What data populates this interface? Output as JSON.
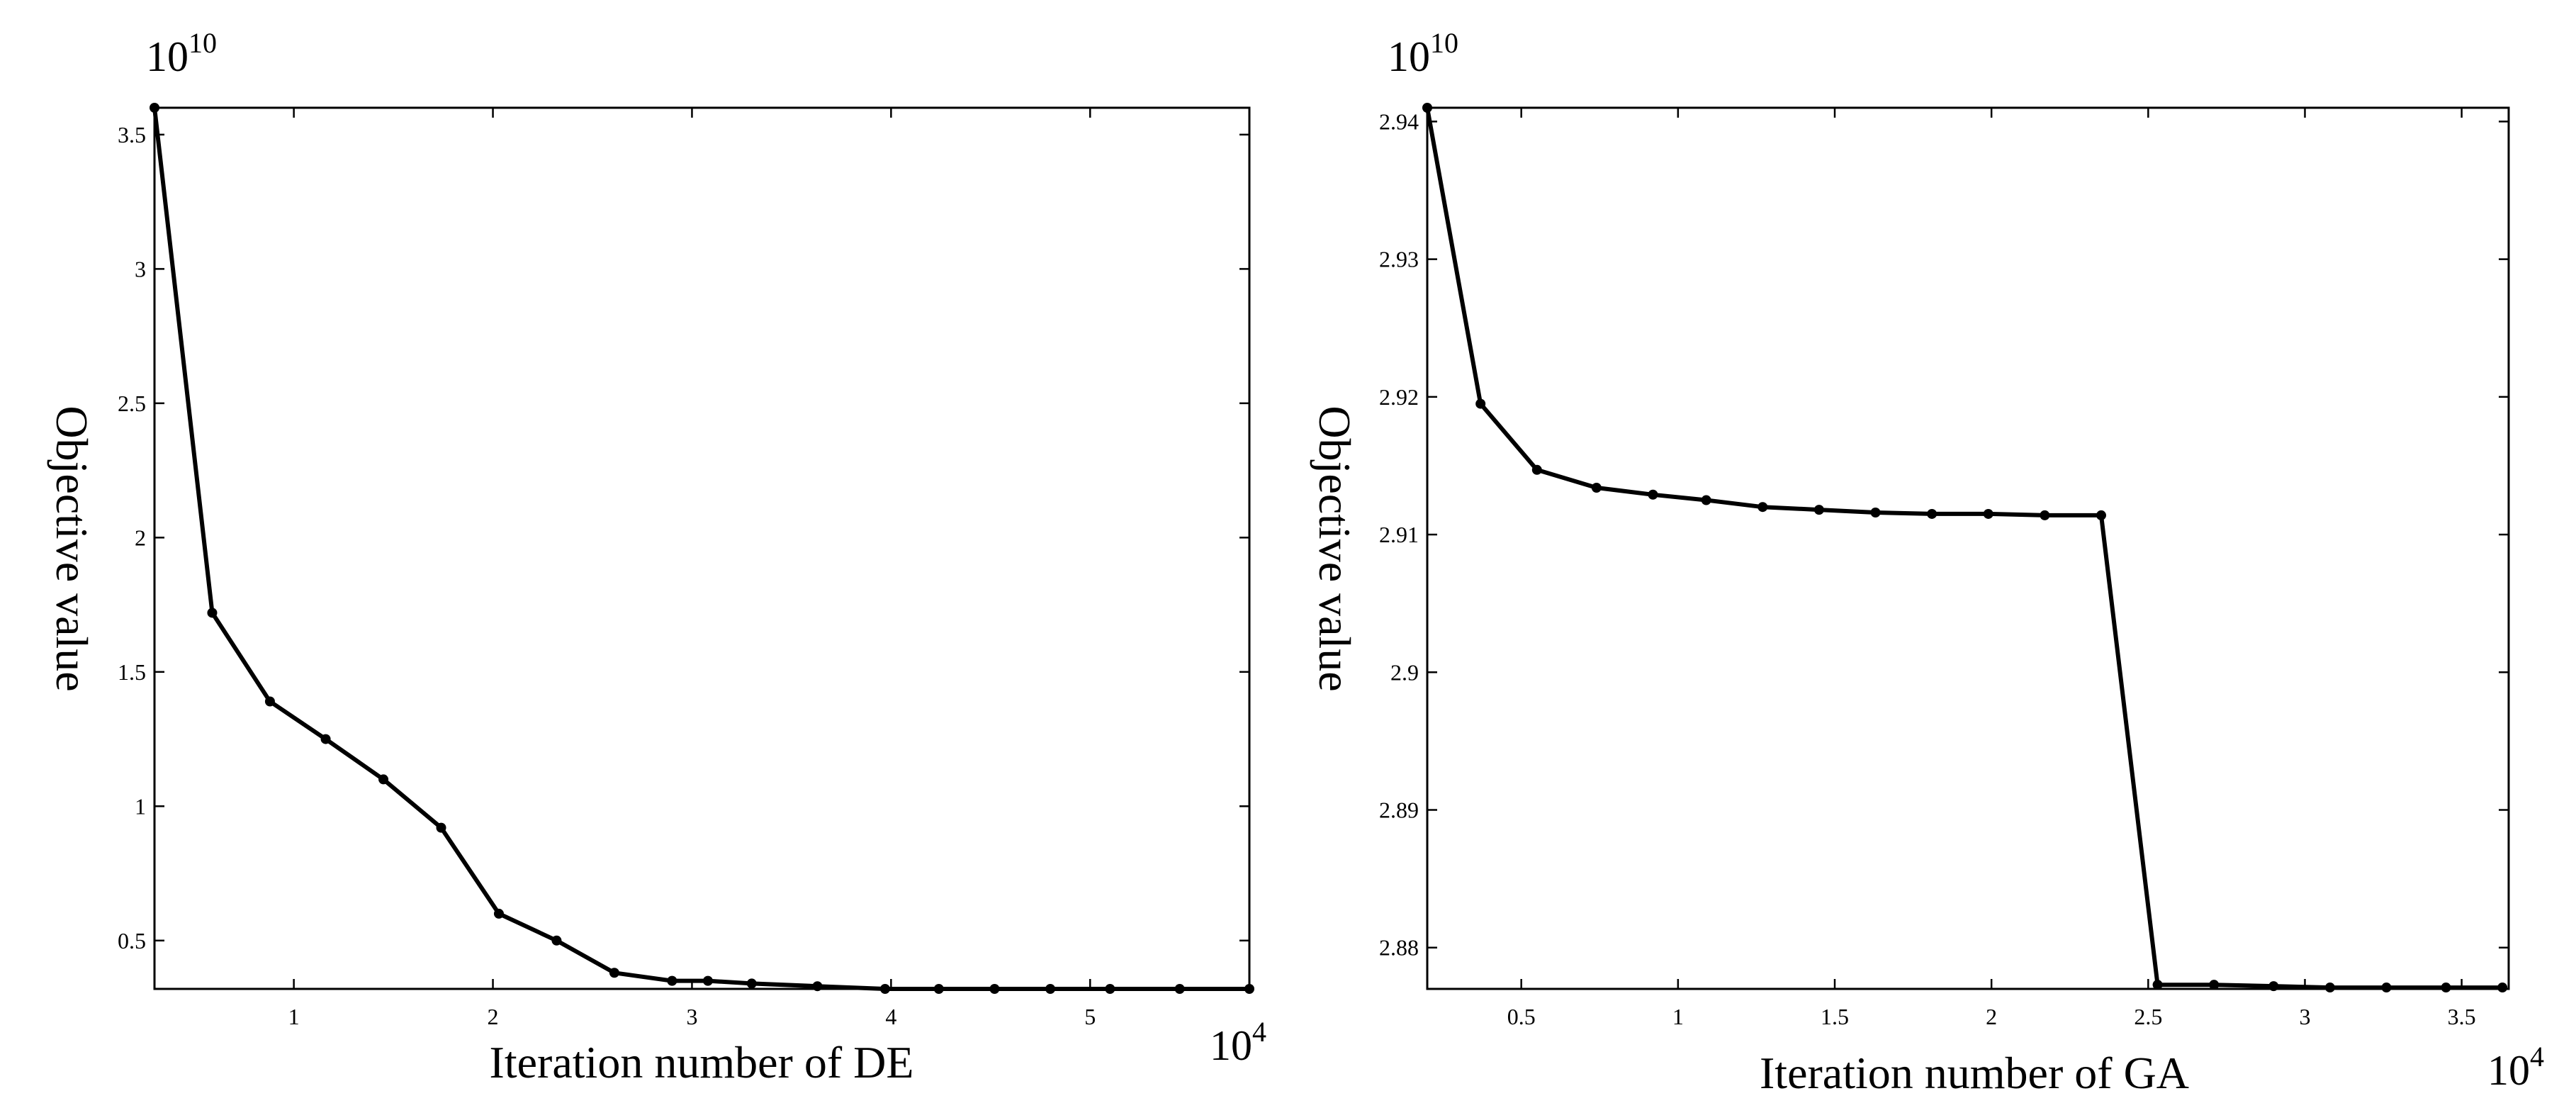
{
  "chart_data": [
    {
      "type": "line",
      "id": "de",
      "xlabel": "Iteration number of DE",
      "ylabel": "Objective value",
      "x_exponent": {
        "base": "10",
        "power": "4"
      },
      "y_exponent": {
        "base": "10",
        "power": "10"
      },
      "xlim": [
        0.3,
        5.8
      ],
      "ylim": [
        0.32,
        3.6
      ],
      "xticks": [
        1,
        2,
        3,
        4,
        5
      ],
      "xtick_labels": [
        "1",
        "2",
        "3",
        "4",
        "5"
      ],
      "yticks": [
        0.5,
        1,
        1.5,
        2,
        2.5,
        3,
        3.5
      ],
      "ytick_labels": [
        "0.5",
        "1",
        "1.5",
        "2",
        "2.5",
        "3",
        "3.5"
      ],
      "grid": false,
      "series": [
        {
          "x": [
            0.3,
            0.59,
            0.88,
            1.16,
            1.45,
            1.74,
            2.03,
            2.32,
            2.61,
            2.9,
            3.08,
            3.3,
            3.63,
            3.97,
            4.24,
            4.52,
            4.8,
            5.1,
            5.45,
            5.8
          ],
          "y": [
            3.6,
            1.72,
            1.39,
            1.25,
            1.1,
            0.92,
            0.6,
            0.5,
            0.38,
            0.35,
            0.35,
            0.34,
            0.33,
            0.32,
            0.32,
            0.32,
            0.32,
            0.32,
            0.32,
            0.32
          ],
          "color": "#000000"
        }
      ]
    },
    {
      "type": "line",
      "id": "ga",
      "xlabel": "Iteration number of GA",
      "ylabel": "Objective value",
      "x_exponent": {
        "base": "10",
        "power": "4"
      },
      "y_exponent": {
        "base": "10",
        "power": "10"
      },
      "xlim": [
        0.2,
        3.65
      ],
      "ylim": [
        2.877,
        2.941
      ],
      "xticks": [
        0.5,
        1,
        1.5,
        2,
        2.5,
        3,
        3.5
      ],
      "xtick_labels": [
        "0.5",
        "1",
        "1.5",
        "2",
        "2.5",
        "3",
        "3.5"
      ],
      "yticks": [
        2.88,
        2.89,
        2.9,
        2.91,
        2.92,
        2.93,
        2.94
      ],
      "ytick_labels": [
        "2.88",
        "2.89",
        "2.9",
        "2.91",
        "2.92",
        "2.93",
        "2.94"
      ],
      "grid": false,
      "series": [
        {
          "x": [
            0.2,
            0.37,
            0.55,
            0.74,
            0.92,
            1.09,
            1.27,
            1.45,
            1.63,
            1.81,
            1.99,
            2.17,
            2.35,
            2.53,
            2.71,
            2.9,
            3.08,
            3.26,
            3.45,
            3.63
          ],
          "y": [
            2.941,
            2.9195,
            2.9147,
            2.9134,
            2.9129,
            2.9125,
            2.912,
            2.9118,
            2.9116,
            2.9115,
            2.9115,
            2.9114,
            2.9114,
            2.8773,
            2.8773,
            2.8772,
            2.8771,
            2.8771,
            2.8771,
            2.8771
          ],
          "color": "#000000"
        }
      ]
    }
  ]
}
